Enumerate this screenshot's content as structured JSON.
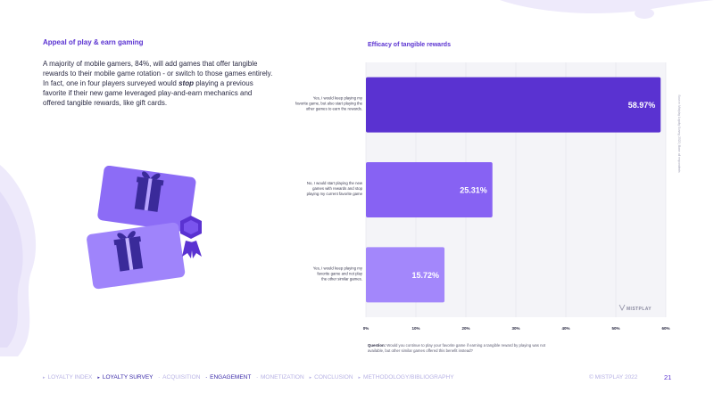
{
  "left": {
    "title": "Appeal of play & earn gaming",
    "body_before": "A majority of mobile gamers, 84%, will add games that offer tangible rewards to their mobile game rotation - or switch to those games entirely. In fact, one in four players surveyed would ",
    "body_emphasis": "stop",
    "body_after": " playing a previous favorite if their new game leveraged play-and-earn mechanics and offered tangible rewards, like gift cards."
  },
  "illustration": {
    "icon_names": [
      "gift-card-icon",
      "gift-card-icon",
      "badge-icon"
    ]
  },
  "chart_data": {
    "type": "bar",
    "orientation": "horizontal",
    "title": "Efficacy of tangible rewards",
    "categories": [
      [
        "Yes, I would keep playing my",
        "favorite game, but also start playing the",
        "other games to earn the rewards."
      ],
      [
        "No, I would start playing the new",
        "games with rewards and stop",
        "playing my current favorite game"
      ],
      [
        "Yes, I would keep playing my",
        "favorite game and not play",
        "the other similar games."
      ]
    ],
    "values": [
      58.97,
      25.31,
      15.72
    ],
    "value_labels": [
      "58.97%",
      "25.31%",
      "15.72%"
    ],
    "colors": [
      "#5a32d1",
      "#8762f3",
      "#a387fb"
    ],
    "xlim": [
      0,
      60
    ],
    "xticks": [
      0,
      10,
      20,
      30,
      40,
      50,
      60
    ],
    "xtick_labels": [
      "0%",
      "10%",
      "20%",
      "30%",
      "40%",
      "50%",
      "60%"
    ],
    "grid": true,
    "plot_background": "#f4f4f8",
    "source_note": "Source: Mistplay Loyalty Survey, 2022 | Base: all respondents",
    "watermark": "MISTPLAY"
  },
  "question": {
    "label": "Question:",
    "text": " Would you continue to play your favorite game if earning a tangible reward by playing was not available, but other similar games offered this benefit instead?"
  },
  "footer": {
    "nav": [
      {
        "label": "LOYALTY INDEX",
        "mark": "▸",
        "active": false
      },
      {
        "label": "LOYALTY SURVEY",
        "mark": "▸",
        "active": true
      },
      {
        "label": "ACQUISITION",
        "mark": "-",
        "active": false
      },
      {
        "label": "ENGAGEMENT",
        "mark": "-",
        "active": true
      },
      {
        "label": "MONETIZATION",
        "mark": "-",
        "active": false
      },
      {
        "label": "CONCLUSION",
        "mark": "▸",
        "active": false
      },
      {
        "label": "METHODOLOGY/BIBLIOGRAPHY",
        "mark": "▸",
        "active": false
      }
    ],
    "copyright": "© MISTPLAY 2022",
    "page": "21"
  }
}
